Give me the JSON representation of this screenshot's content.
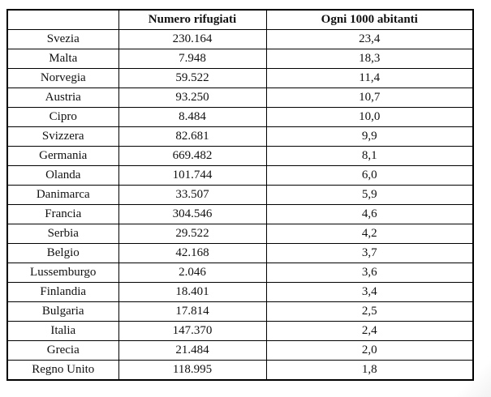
{
  "table": {
    "headers": [
      "",
      "Numero rifugiati",
      "Ogni 1000 abitanti"
    ],
    "rows": [
      {
        "country": "Svezia",
        "refugees": "230.164",
        "per_1000": "23,4"
      },
      {
        "country": "Malta",
        "refugees": "7.948",
        "per_1000": "18,3"
      },
      {
        "country": "Norvegia",
        "refugees": "59.522",
        "per_1000": "11,4"
      },
      {
        "country": "Austria",
        "refugees": "93.250",
        "per_1000": "10,7"
      },
      {
        "country": "Cipro",
        "refugees": "8.484",
        "per_1000": "10,0"
      },
      {
        "country": "Svizzera",
        "refugees": "82.681",
        "per_1000": "9,9"
      },
      {
        "country": "Germania",
        "refugees": "669.482",
        "per_1000": "8,1"
      },
      {
        "country": "Olanda",
        "refugees": "101.744",
        "per_1000": "6,0"
      },
      {
        "country": "Danimarca",
        "refugees": "33.507",
        "per_1000": "5,9"
      },
      {
        "country": "Francia",
        "refugees": "304.546",
        "per_1000": "4,6"
      },
      {
        "country": "Serbia",
        "refugees": "29.522",
        "per_1000": "4,2"
      },
      {
        "country": "Belgio",
        "refugees": "42.168",
        "per_1000": "3,7"
      },
      {
        "country": "Lussemburgo",
        "refugees": "2.046",
        "per_1000": "3,6"
      },
      {
        "country": "Finlandia",
        "refugees": "18.401",
        "per_1000": "3,4"
      },
      {
        "country": "Bulgaria",
        "refugees": "17.814",
        "per_1000": "2,5"
      },
      {
        "country": "Italia",
        "refugees": "147.370",
        "per_1000": "2,4"
      },
      {
        "country": "Grecia",
        "refugees": "21.484",
        "per_1000": "2,0"
      },
      {
        "country": "Regno Unito",
        "refugees": "118.995",
        "per_1000": "1,8"
      }
    ]
  },
  "chart_data": {
    "type": "table",
    "title": "",
    "columns": [
      "",
      "Numero rifugiati",
      "Ogni 1000 abitanti"
    ],
    "categories": [
      "Svezia",
      "Malta",
      "Norvegia",
      "Austria",
      "Cipro",
      "Svizzera",
      "Germania",
      "Olanda",
      "Danimarca",
      "Francia",
      "Serbia",
      "Belgio",
      "Lussemburgo",
      "Finlandia",
      "Bulgaria",
      "Italia",
      "Grecia",
      "Regno Unito"
    ],
    "series": [
      {
        "name": "Numero rifugiati",
        "values": [
          230164,
          7948,
          59522,
          93250,
          8484,
          82681,
          669482,
          101744,
          33507,
          304546,
          29522,
          42168,
          2046,
          18401,
          17814,
          147370,
          21484,
          118995
        ]
      },
      {
        "name": "Ogni 1000 abitanti",
        "values": [
          23.4,
          18.3,
          11.4,
          10.7,
          10.0,
          9.9,
          8.1,
          6.0,
          5.9,
          4.6,
          4.2,
          3.7,
          3.6,
          3.4,
          2.5,
          2.4,
          2.0,
          1.8
        ]
      }
    ]
  },
  "colors": {
    "border": "#000000",
    "text": "#111111",
    "background": "#ffffff"
  }
}
